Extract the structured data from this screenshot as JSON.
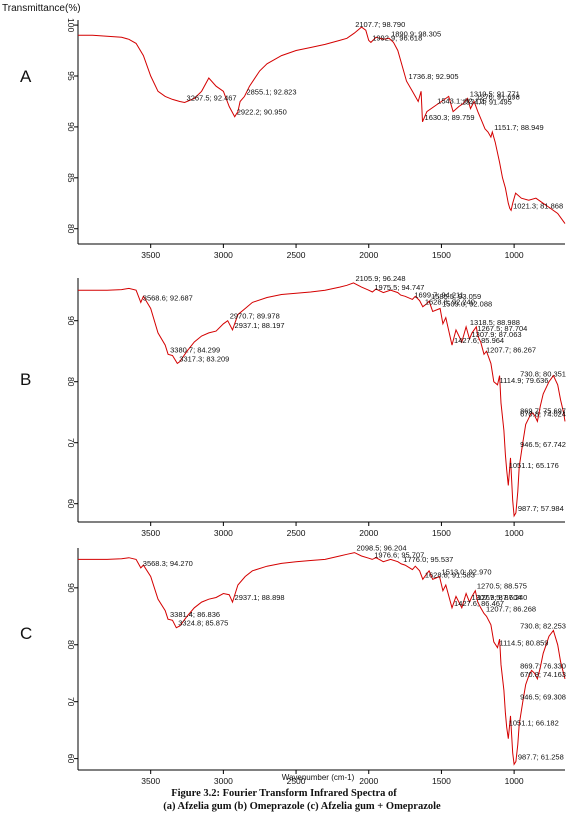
{
  "y_axis_title": "Transmittance(%)",
  "x_axis_title": "Wavenumber (cm-1)",
  "caption": {
    "line1": "Figure 3.2: Fourier Transform Infrared Spectra of",
    "line2": "(a) Afzelia gum (b) Omeprazole (c) Afzelia gum + Omeprazole"
  },
  "colors": {
    "spectrum": "#d40000",
    "axis": "#000000"
  },
  "chart_data": [
    {
      "type": "line",
      "panel": "A",
      "xlim": [
        4000,
        650
      ],
      "ylim": [
        78.5,
        100.5
      ],
      "xticks": [
        3500,
        3000,
        2500,
        2000,
        1500,
        1000
      ],
      "yticks": [
        100,
        95,
        90,
        85,
        80
      ],
      "x": [
        4000,
        3900,
        3800,
        3700,
        3650,
        3600,
        3550,
        3500,
        3450,
        3400,
        3350,
        3300,
        3267,
        3200,
        3150,
        3100,
        3050,
        3000,
        2960,
        2922,
        2900,
        2885,
        2855,
        2820,
        2750,
        2700,
        2600,
        2500,
        2400,
        2300,
        2200,
        2150,
        2100,
        2050,
        2020,
        2000,
        1985,
        1950,
        1900,
        1860,
        1830,
        1800,
        1760,
        1740,
        1700,
        1660,
        1640,
        1630,
        1600,
        1540,
        1500,
        1450,
        1420,
        1380,
        1350,
        1320,
        1300,
        1275,
        1250,
        1220,
        1200,
        1180,
        1160,
        1150,
        1130,
        1100,
        1080,
        1060,
        1040,
        1030,
        1021,
        1010,
        990,
        950,
        900,
        850,
        800,
        750,
        700,
        650
      ],
      "y": [
        99.0,
        99.0,
        98.9,
        98.8,
        98.6,
        98.2,
        97.0,
        95.0,
        93.5,
        93.0,
        92.7,
        92.5,
        92.4,
        92.8,
        93.5,
        94.8,
        94.0,
        93.5,
        92.0,
        91.0,
        91.5,
        92.5,
        93.0,
        94.0,
        95.5,
        96.2,
        97.0,
        97.5,
        97.8,
        98.1,
        98.5,
        98.7,
        99.2,
        99.8,
        99.5,
        98.5,
        98.3,
        98.8,
        98.6,
        98.7,
        98.3,
        97.5,
        95.5,
        94.5,
        93.5,
        92.5,
        93.5,
        90.5,
        91.5,
        92.1,
        92.5,
        93.0,
        91.5,
        92.0,
        92.3,
        92.8,
        91.8,
        92.5,
        91.5,
        90.5,
        89.8,
        89.5,
        89.0,
        89.5,
        88.5,
        86.5,
        85.0,
        84.0,
        82.5,
        82.0,
        81.8,
        82.5,
        83.5,
        83.0,
        82.8,
        83.0,
        82.5,
        82.0,
        81.5,
        80.5
      ],
      "annotations": [
        {
          "text": "3267.5; 92.467",
          "x": 3267,
          "y": 92.4
        },
        {
          "text": "2855.1; 92.823",
          "x": 2855,
          "y": 93.0
        },
        {
          "text": "2922.2; 90.950",
          "x": 2922,
          "y": 91.0
        },
        {
          "text": "2107.7; 98.790",
          "x": 2107,
          "y": 99.6
        },
        {
          "text": "1992.9; 96.618",
          "x": 1990,
          "y": 98.3
        },
        {
          "text": "1890.9; 98.305",
          "x": 1860,
          "y": 98.7
        },
        {
          "text": "1736.8; 92.905",
          "x": 1740,
          "y": 94.5
        },
        {
          "text": "1543.1; 92.115",
          "x": 1543,
          "y": 92.1
        },
        {
          "text": "1630.3; 89.759",
          "x": 1630,
          "y": 90.5
        },
        {
          "text": "1319.5; 91.771",
          "x": 1319,
          "y": 92.8
        },
        {
          "text": "1374.4; 91.495",
          "x": 1374,
          "y": 92.0
        },
        {
          "text": "1276; 91.698",
          "x": 1276,
          "y": 92.5
        },
        {
          "text": "1151.7; 88.949",
          "x": 1151,
          "y": 89.5
        },
        {
          "text": "1021.3; 81.868",
          "x": 1021,
          "y": 81.8
        }
      ]
    },
    {
      "type": "line",
      "panel": "B",
      "xlim": [
        4000,
        650
      ],
      "ylim": [
        57,
        97
      ],
      "xticks": [
        3500,
        3000,
        2500,
        2000,
        1500,
        1000
      ],
      "yticks": [
        90,
        80,
        70,
        60
      ],
      "x": [
        4000,
        3900,
        3800,
        3700,
        3650,
        3600,
        3568,
        3550,
        3500,
        3450,
        3400,
        3380,
        3350,
        3317,
        3300,
        3250,
        3200,
        3150,
        3100,
        3050,
        3000,
        2970,
        2937,
        2900,
        2850,
        2800,
        2700,
        2600,
        2500,
        2400,
        2300,
        2200,
        2150,
        2105,
        2050,
        2000,
        1975,
        1950,
        1900,
        1850,
        1800,
        1780,
        1750,
        1700,
        1680,
        1650,
        1628,
        1600,
        1585,
        1560,
        1509,
        1490,
        1470,
        1427,
        1400,
        1360,
        1330,
        1307,
        1290,
        1260,
        1250,
        1230,
        1207,
        1190,
        1160,
        1140,
        1114,
        1100,
        1090,
        1070,
        1060,
        1051,
        1040,
        1025,
        1010,
        1000,
        988,
        975,
        965,
        940,
        920,
        900,
        880,
        860,
        840,
        820,
        800,
        780,
        760,
        730,
        700,
        680,
        660,
        650
      ],
      "y": [
        95.0,
        95.0,
        95.0,
        95.1,
        95.3,
        95.0,
        93.0,
        94.0,
        92.0,
        88.0,
        86.0,
        84.5,
        84.3,
        83.0,
        83.3,
        85.0,
        86.5,
        87.5,
        88.0,
        88.3,
        89.5,
        90.0,
        88.5,
        91.0,
        92.0,
        93.0,
        93.8,
        94.3,
        94.5,
        94.7,
        95.0,
        95.5,
        95.8,
        96.2,
        95.5,
        95.0,
        94.7,
        95.2,
        94.6,
        95.0,
        94.6,
        94.2,
        94.0,
        93.5,
        94.0,
        93.3,
        92.3,
        92.8,
        93.2,
        91.5,
        92.0,
        89.5,
        90.5,
        86.0,
        88.5,
        86.5,
        89.0,
        87.0,
        88.0,
        89.0,
        87.5,
        86.5,
        84.5,
        85.0,
        83.0,
        80.0,
        79.5,
        81.0,
        76.5,
        72.0,
        68.0,
        65.5,
        63.0,
        67.5,
        60.5,
        58.0,
        58.5,
        62.0,
        66.0,
        70.0,
        73.0,
        74.0,
        75.0,
        74.5,
        73.5,
        76.0,
        78.0,
        79.0,
        80.0,
        81.0,
        79.5,
        77.0,
        75.0,
        73.5
      ],
      "annotations": [
        {
          "text": "3568.6; 92.687",
          "x": 3568,
          "y": 93.0
        },
        {
          "text": "2970.7; 89.978",
          "x": 2970,
          "y": 90.0
        },
        {
          "text": "2937.1; 88.197",
          "x": 2937,
          "y": 88.5
        },
        {
          "text": "3380.7; 84.299",
          "x": 3380,
          "y": 84.5
        },
        {
          "text": "3317.3; 83.209",
          "x": 3317,
          "y": 83.0
        },
        {
          "text": "2105.9; 96.248",
          "x": 2105,
          "y": 96.2
        },
        {
          "text": "1975.5; 94.747",
          "x": 1975,
          "y": 94.7
        },
        {
          "text": "1699.7; 94.211",
          "x": 1700,
          "y": 93.5
        },
        {
          "text": "1585.5; 93.059",
          "x": 1585,
          "y": 93.2
        },
        {
          "text": "1628.8; 92.240",
          "x": 1628,
          "y": 92.3
        },
        {
          "text": "1509.0; 92.088",
          "x": 1509,
          "y": 92.0
        },
        {
          "text": "1318.5; 88.988",
          "x": 1318,
          "y": 89.0
        },
        {
          "text": "1267.5; 87.704",
          "x": 1267,
          "y": 88.0
        },
        {
          "text": "1427.6; 85.964",
          "x": 1427,
          "y": 86.0
        },
        {
          "text": "1307.9; 87.063",
          "x": 1307,
          "y": 87.0
        },
        {
          "text": "1207.7; 86.267",
          "x": 1207,
          "y": 84.5
        },
        {
          "text": "1114.9; 79.636",
          "x": 1114,
          "y": 79.5
        },
        {
          "text": "869.7; 75.697",
          "x": 870,
          "y": 74.5
        },
        {
          "text": "730.8; 80.351",
          "x": 730,
          "y": 80.5
        },
        {
          "text": "670.8; 74.024",
          "x": 670,
          "y": 74.0
        },
        {
          "text": "946.5; 67.742",
          "x": 946,
          "y": 69.0
        },
        {
          "text": "1051.1; 65.176",
          "x": 1051,
          "y": 65.5
        },
        {
          "text": "987.7; 57.984",
          "x": 988,
          "y": 58.5
        }
      ]
    },
    {
      "type": "line",
      "panel": "C",
      "xlim": [
        4000,
        650
      ],
      "ylim": [
        58,
        97
      ],
      "xticks": [
        3500,
        3000,
        2500,
        2000,
        1500,
        1000
      ],
      "yticks": [
        90,
        80,
        70,
        60
      ],
      "x": [
        4000,
        3900,
        3800,
        3700,
        3650,
        3600,
        3568,
        3550,
        3500,
        3450,
        3400,
        3381,
        3350,
        3324,
        3300,
        3250,
        3200,
        3150,
        3100,
        3050,
        3000,
        2960,
        2937,
        2900,
        2850,
        2800,
        2700,
        2600,
        2500,
        2400,
        2300,
        2200,
        2150,
        2098,
        2050,
        2000,
        1976,
        1950,
        1900,
        1850,
        1800,
        1776,
        1750,
        1700,
        1680,
        1650,
        1628,
        1600,
        1585,
        1560,
        1513,
        1490,
        1470,
        1427,
        1400,
        1360,
        1330,
        1307,
        1290,
        1267,
        1250,
        1230,
        1207,
        1190,
        1160,
        1140,
        1114,
        1100,
        1090,
        1070,
        1060,
        1051,
        1040,
        1025,
        1010,
        1000,
        988,
        975,
        965,
        940,
        920,
        900,
        880,
        860,
        840,
        820,
        800,
        780,
        760,
        730,
        700,
        680,
        660,
        650
      ],
      "y": [
        95.0,
        95.0,
        95.0,
        95.1,
        95.3,
        95.0,
        93.5,
        94.0,
        92.0,
        88.0,
        86.0,
        84.5,
        84.3,
        83.0,
        83.3,
        85.0,
        86.5,
        87.5,
        88.0,
        88.3,
        89.0,
        88.8,
        87.5,
        90.5,
        92.0,
        93.0,
        93.8,
        94.3,
        94.6,
        94.8,
        95.0,
        95.6,
        95.9,
        96.2,
        95.6,
        95.2,
        95.0,
        95.3,
        94.6,
        95.0,
        94.6,
        94.2,
        94.0,
        93.2,
        93.8,
        93.0,
        91.5,
        92.5,
        93.0,
        91.5,
        92.0,
        89.5,
        90.5,
        86.5,
        88.5,
        86.5,
        89.0,
        87.5,
        88.5,
        89.5,
        87.5,
        86.5,
        85.5,
        85.0,
        83.5,
        80.5,
        79.5,
        81.0,
        76.5,
        72.0,
        68.0,
        65.5,
        63.5,
        67.5,
        61.0,
        59.0,
        59.5,
        62.5,
        66.0,
        70.0,
        73.0,
        74.5,
        75.5,
        75.0,
        74.0,
        76.0,
        78.5,
        80.0,
        81.5,
        82.5,
        80.0,
        77.0,
        75.0,
        74.0
      ],
      "annotations": [
        {
          "text": "3568.3; 94.270",
          "x": 3568,
          "y": 93.5
        },
        {
          "text": "3381.4; 86.836",
          "x": 3381,
          "y": 84.5
        },
        {
          "text": "3324.8; 85.875",
          "x": 3324,
          "y": 83.0
        },
        {
          "text": "2937.1; 88.898",
          "x": 2937,
          "y": 87.5
        },
        {
          "text": "2098.5; 96.204",
          "x": 2098,
          "y": 96.2
        },
        {
          "text": "1976.6; 95.707",
          "x": 1976,
          "y": 95.0
        },
        {
          "text": "1776.0; 95.537",
          "x": 1776,
          "y": 94.2
        },
        {
          "text": "1513.0; 92.970",
          "x": 1513,
          "y": 92.0
        },
        {
          "text": "1628.8; 91.583",
          "x": 1628,
          "y": 91.5
        },
        {
          "text": "1307.9; 87.604",
          "x": 1307,
          "y": 87.5
        },
        {
          "text": "1427.6; 86.467",
          "x": 1427,
          "y": 86.5
        },
        {
          "text": "1270.5; 88.575",
          "x": 1270,
          "y": 89.5
        },
        {
          "text": "1267.5; 87.240",
          "x": 1267,
          "y": 87.5
        },
        {
          "text": "1207.7; 86.268",
          "x": 1207,
          "y": 85.5
        },
        {
          "text": "730.8; 82.253",
          "x": 730,
          "y": 82.5
        },
        {
          "text": "1114.5; 80.859",
          "x": 1114,
          "y": 79.5
        },
        {
          "text": "869.7; 76.330",
          "x": 870,
          "y": 75.5
        },
        {
          "text": "670.8; 74.163",
          "x": 670,
          "y": 74.0
        },
        {
          "text": "946.5; 69.308",
          "x": 946,
          "y": 70.0
        },
        {
          "text": "1051.1; 66.182",
          "x": 1051,
          "y": 65.5
        },
        {
          "text": "987.7; 61.258",
          "x": 988,
          "y": 59.5
        }
      ]
    }
  ]
}
